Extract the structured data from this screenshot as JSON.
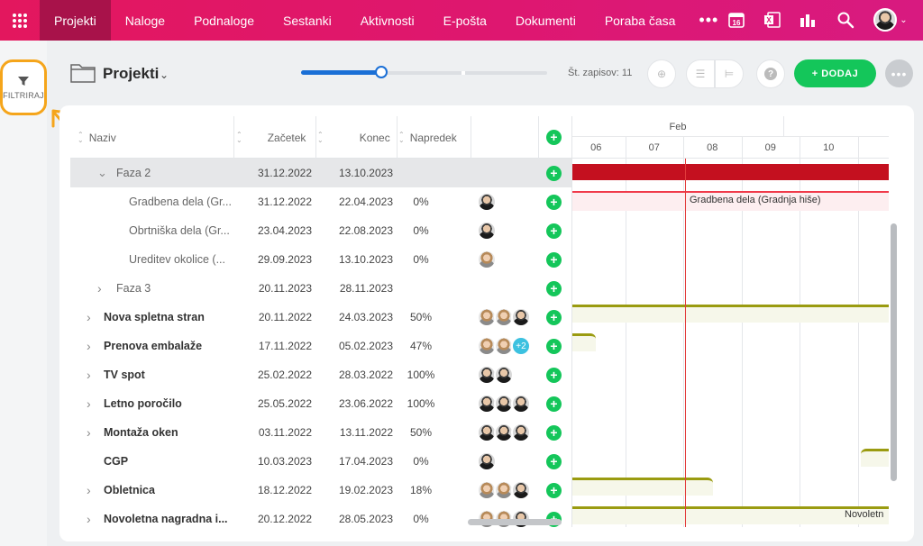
{
  "nav": {
    "items": [
      {
        "label": "Projekti",
        "active": true
      },
      {
        "label": "Naloge"
      },
      {
        "label": "Podnaloge"
      },
      {
        "label": "Sestanki"
      },
      {
        "label": "Aktivnosti"
      },
      {
        "label": "E-pošta"
      },
      {
        "label": "Dokumenti"
      },
      {
        "label": "Poraba časa"
      }
    ],
    "more": "•••",
    "calendar_day": "16",
    "icons": [
      "apps-grid-icon",
      "calendar-icon",
      "excel-icon",
      "chart-icon",
      "search-icon",
      "user-avatar"
    ]
  },
  "sidebar": {
    "filter_label": "FILTRIRAJ"
  },
  "header": {
    "title": "Projekti",
    "record_count": "Št. zapisov: 11",
    "add_label": "+ DODAJ",
    "zoom_percent": 33
  },
  "grid": {
    "columns": {
      "name": "Naziv",
      "start": "Začetek",
      "end": "Konec",
      "progress": "Napredek"
    },
    "rows": [
      {
        "name": "Faza 2",
        "start": "31.12.2022",
        "end": "13.10.2023",
        "progress": "",
        "avatars": [],
        "expand": "expanded",
        "level": 1,
        "selected": true
      },
      {
        "name": "Gradbena dela (Gr...",
        "start": "31.12.2022",
        "end": "22.04.2023",
        "progress": "0%",
        "avatars": [
          "m"
        ],
        "level": 2
      },
      {
        "name": "Obrtniška dela (Gr...",
        "start": "23.04.2023",
        "end": "22.08.2023",
        "progress": "0%",
        "avatars": [
          "m"
        ],
        "level": 2
      },
      {
        "name": "Ureditev okolice (...",
        "start": "29.09.2023",
        "end": "13.10.2023",
        "progress": "0%",
        "avatars": [
          "f"
        ],
        "level": 2
      },
      {
        "name": "Faza 3",
        "start": "20.11.2023",
        "end": "28.11.2023",
        "progress": "",
        "avatars": [],
        "expand": "collapsed",
        "level": 1
      },
      {
        "name": "Nova spletna stran",
        "start": "20.11.2022",
        "end": "24.03.2023",
        "progress": "50%",
        "avatars": [
          "f",
          "f",
          "m"
        ],
        "expand": "collapsed",
        "level": 0
      },
      {
        "name": "Prenova embalaže",
        "start": "17.11.2022",
        "end": "05.02.2023",
        "progress": "47%",
        "avatars": [
          "f",
          "f"
        ],
        "extra": "+2",
        "expand": "collapsed",
        "level": 0
      },
      {
        "name": "TV spot",
        "start": "25.02.2022",
        "end": "28.03.2022",
        "progress": "100%",
        "avatars": [
          "m",
          "m"
        ],
        "expand": "collapsed",
        "level": 0
      },
      {
        "name": "Letno poročilo",
        "start": "25.05.2022",
        "end": "23.06.2022",
        "progress": "100%",
        "avatars": [
          "m",
          "m",
          "m"
        ],
        "expand": "collapsed",
        "level": 0
      },
      {
        "name": "Montaža oken",
        "start": "03.11.2022",
        "end": "13.11.2022",
        "progress": "50%",
        "avatars": [
          "m",
          "m",
          "m"
        ],
        "expand": "collapsed",
        "level": 0
      },
      {
        "name": "CGP",
        "start": "10.03.2023",
        "end": "17.04.2023",
        "progress": "0%",
        "avatars": [
          "m"
        ],
        "level": 0
      },
      {
        "name": "Obletnica",
        "start": "18.12.2022",
        "end": "19.02.2023",
        "progress": "18%",
        "avatars": [
          "f",
          "f",
          "m"
        ],
        "expand": "collapsed",
        "level": 0
      },
      {
        "name": "Novoletna nagradna i...",
        "start": "20.12.2022",
        "end": "28.05.2023",
        "progress": "0%",
        "avatars": [
          "f",
          "f",
          "m"
        ],
        "expand": "collapsed",
        "level": 0
      }
    ]
  },
  "gantt": {
    "month": "Feb",
    "days": [
      "06",
      "07",
      "08",
      "09",
      "10"
    ],
    "bar_label": "Gradbena dela (Gradnja hiše)",
    "bar_label_2": "Novoletn",
    "colors": {
      "phase": "#c4101f",
      "task": "#f03a4a",
      "project": "#9a9b10",
      "today": "#e23b3b",
      "accent": "#14c65a"
    }
  }
}
